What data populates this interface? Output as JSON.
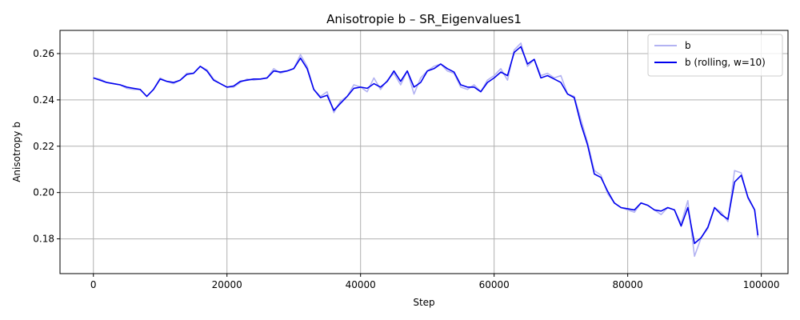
{
  "chart_data": {
    "type": "line",
    "title": "Anisotropie b – SR_Eigenvalues1",
    "xlabel": "Step",
    "ylabel": "Anisotropy b",
    "xlim": [
      -5000,
      104000
    ],
    "ylim": [
      0.165,
      0.27
    ],
    "xticks": [
      0,
      20000,
      40000,
      60000,
      80000,
      100000
    ],
    "yticks": [
      0.18,
      0.2,
      0.22,
      0.24,
      0.26
    ],
    "grid": true,
    "legend_position": "top-right",
    "series": [
      {
        "name": "b",
        "color": "#b3b3f2",
        "x": [
          0,
          1000,
          2000,
          3000,
          4000,
          5000,
          6000,
          7000,
          8000,
          9000,
          10000,
          11000,
          12000,
          13000,
          14000,
          15000,
          16000,
          17000,
          18000,
          19000,
          20000,
          21000,
          22000,
          23000,
          24000,
          25000,
          26000,
          27000,
          28000,
          29000,
          30000,
          31000,
          32000,
          33000,
          34000,
          35000,
          36000,
          37000,
          38000,
          39000,
          40000,
          41000,
          42000,
          43000,
          44000,
          45000,
          46000,
          47000,
          48000,
          49000,
          50000,
          51000,
          52000,
          53000,
          54000,
          55000,
          56000,
          57000,
          58000,
          59000,
          60000,
          61000,
          62000,
          63000,
          64000,
          65000,
          66000,
          67000,
          68000,
          69000,
          70000,
          71000,
          72000,
          73000,
          74000,
          75000,
          76000,
          77000,
          78000,
          79000,
          80000,
          81000,
          82000,
          83000,
          84000,
          85000,
          86000,
          87000,
          88000,
          89000,
          90000,
          91000,
          92000,
          93000,
          94000,
          95000,
          96000,
          97000,
          98000,
          99000,
          99500
        ],
        "values": [
          0.2495,
          0.249,
          0.2475,
          0.247,
          0.2465,
          0.245,
          0.2445,
          0.2445,
          0.2415,
          0.2445,
          0.2495,
          0.248,
          0.247,
          0.2485,
          0.2515,
          0.2515,
          0.2545,
          0.253,
          0.249,
          0.247,
          0.2455,
          0.2455,
          0.2475,
          0.249,
          0.2485,
          0.249,
          0.2495,
          0.2535,
          0.2515,
          0.2525,
          0.2535,
          0.2595,
          0.2545,
          0.2445,
          0.2415,
          0.2435,
          0.2345,
          0.2395,
          0.2415,
          0.2465,
          0.2455,
          0.2435,
          0.2495,
          0.2445,
          0.2485,
          0.2515,
          0.2465,
          0.2525,
          0.2425,
          0.2495,
          0.2525,
          0.2545,
          0.2555,
          0.2525,
          0.2515,
          0.2455,
          0.2445,
          0.2465,
          0.2435,
          0.2485,
          0.2505,
          0.2535,
          0.2485,
          0.2615,
          0.2645,
          0.2545,
          0.2575,
          0.2505,
          0.2515,
          0.2495,
          0.2505,
          0.2425,
          0.2415,
          0.2315,
          0.2215,
          0.2095,
          0.2075,
          0.1995,
          0.1955,
          0.1935,
          0.1925,
          0.1915,
          0.1955,
          0.1945,
          0.1925,
          0.1905,
          0.1935,
          0.1925,
          0.1865,
          0.1965,
          0.1725,
          0.1805,
          0.1845,
          0.1935,
          0.1915,
          0.1875,
          0.2095,
          0.2085,
          0.1975,
          0.1925,
          0.1805
        ]
      },
      {
        "name": "b (rolling, w=10)",
        "color": "#0000ee",
        "x": [
          0,
          1000,
          2000,
          3000,
          4000,
          5000,
          6000,
          7000,
          8000,
          9000,
          10000,
          11000,
          12000,
          13000,
          14000,
          15000,
          16000,
          17000,
          18000,
          19000,
          20000,
          21000,
          22000,
          23000,
          24000,
          25000,
          26000,
          27000,
          28000,
          29000,
          30000,
          31000,
          32000,
          33000,
          34000,
          35000,
          36000,
          37000,
          38000,
          39000,
          40000,
          41000,
          42000,
          43000,
          44000,
          45000,
          46000,
          47000,
          48000,
          49000,
          50000,
          51000,
          52000,
          53000,
          54000,
          55000,
          56000,
          57000,
          58000,
          59000,
          60000,
          61000,
          62000,
          63000,
          64000,
          65000,
          66000,
          67000,
          68000,
          69000,
          70000,
          71000,
          72000,
          73000,
          74000,
          75000,
          76000,
          77000,
          78000,
          79000,
          80000,
          81000,
          82000,
          83000,
          84000,
          85000,
          86000,
          87000,
          88000,
          89000,
          90000,
          91000,
          92000,
          93000,
          94000,
          95000,
          96000,
          97000,
          98000,
          99000,
          99500
        ],
        "values": [
          0.2495,
          0.2485,
          0.2475,
          0.247,
          0.2465,
          0.2455,
          0.245,
          0.2445,
          0.2415,
          0.2445,
          0.249,
          0.248,
          0.2475,
          0.2485,
          0.251,
          0.2515,
          0.2545,
          0.2525,
          0.2485,
          0.247,
          0.2455,
          0.246,
          0.248,
          0.2485,
          0.249,
          0.249,
          0.2495,
          0.2525,
          0.252,
          0.2525,
          0.2535,
          0.258,
          0.2535,
          0.2445,
          0.241,
          0.242,
          0.2355,
          0.2385,
          0.2415,
          0.245,
          0.2455,
          0.245,
          0.247,
          0.2455,
          0.248,
          0.2525,
          0.248,
          0.2525,
          0.2455,
          0.2475,
          0.2525,
          0.2535,
          0.2555,
          0.2535,
          0.252,
          0.2465,
          0.2455,
          0.2455,
          0.2435,
          0.2475,
          0.2495,
          0.252,
          0.2505,
          0.2605,
          0.263,
          0.2555,
          0.2575,
          0.2495,
          0.2505,
          0.249,
          0.2475,
          0.2425,
          0.241,
          0.2295,
          0.2205,
          0.208,
          0.2065,
          0.2005,
          0.1955,
          0.1935,
          0.193,
          0.1925,
          0.1955,
          0.1945,
          0.1925,
          0.192,
          0.1935,
          0.1925,
          0.1855,
          0.1935,
          0.178,
          0.1805,
          0.185,
          0.1935,
          0.1905,
          0.1885,
          0.2045,
          0.2075,
          0.198,
          0.1925,
          0.1815
        ]
      }
    ]
  }
}
